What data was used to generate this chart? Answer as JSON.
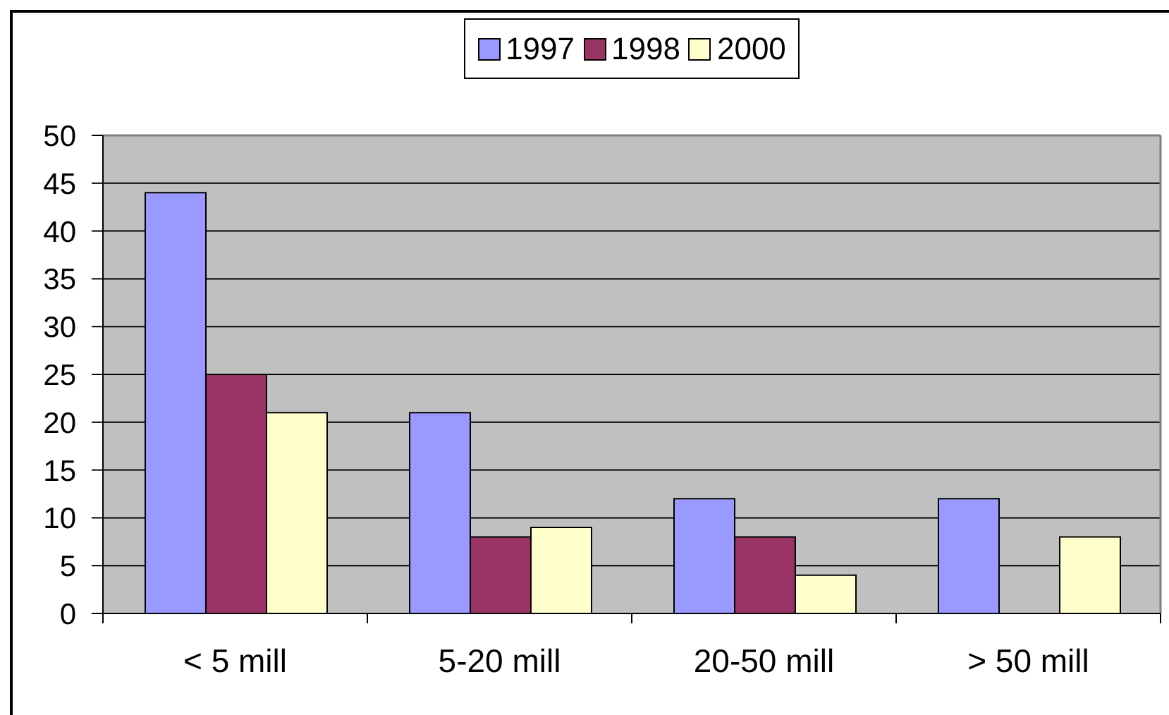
{
  "chart_data": {
    "type": "bar",
    "categories": [
      "< 5 mill",
      "5-20 mill",
      "20-50 mill",
      "> 50 mill"
    ],
    "series": [
      {
        "name": "1997",
        "color": "#9999ff",
        "values": [
          44,
          21,
          12,
          12
        ]
      },
      {
        "name": "1998",
        "color": "#993366",
        "values": [
          25,
          8,
          8,
          null
        ]
      },
      {
        "name": "2000",
        "color": "#ffffcc",
        "values": [
          21,
          9,
          4,
          8
        ]
      }
    ],
    "ylim": [
      0,
      50
    ],
    "yticks": [
      0,
      5,
      10,
      15,
      20,
      25,
      30,
      35,
      40,
      45,
      50
    ],
    "grid": "y",
    "legend": "top"
  }
}
